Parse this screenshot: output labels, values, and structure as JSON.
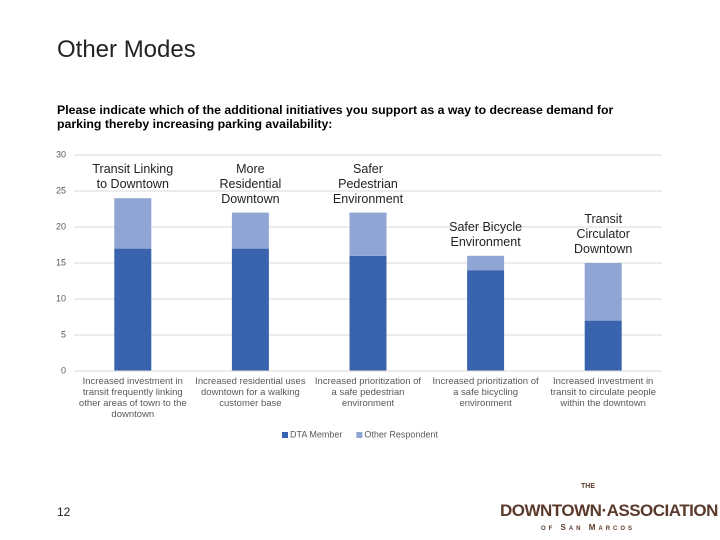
{
  "slide": {
    "title": "Other Modes",
    "page_number": "12",
    "logo": {
      "prefix": "THE",
      "name": "DOWNTOWN·ASSOCIATION",
      "place": "of San Marcos"
    }
  },
  "chart_data": {
    "type": "stacked_bar",
    "title": "Please indicate which of the additional initiatives you support as a way to decrease demand for parking thereby increasing parking availability:",
    "categories": [
      "Increased investment in transit frequently linking other areas of town to the downtown",
      "Increased residential uses downtown for a walking customer base",
      "Increased prioritization of a safe pedestrian environment",
      "Increased prioritization of a safe bicycling environment",
      "Increased investment in transit to circulate people within the downtown"
    ],
    "series": [
      {
        "name": "DTA Member",
        "color": "#3a63ad",
        "values": [
          17,
          17,
          16,
          14,
          7
        ]
      },
      {
        "name": "Other Respondent",
        "color": "#8fa6d4",
        "values": [
          7,
          5,
          6,
          2,
          8
        ]
      }
    ],
    "annotations": [
      "Transit Linking to Downtown",
      "More Residential Downtown",
      "Safer Pedestrian Environment",
      "Safer Bicycle Environment",
      "Transit Circulator Downtown"
    ],
    "ylim": [
      0,
      30
    ],
    "yticks": [
      0,
      5,
      10,
      15,
      20,
      25,
      30
    ],
    "grid": true,
    "legend": "bottom"
  }
}
